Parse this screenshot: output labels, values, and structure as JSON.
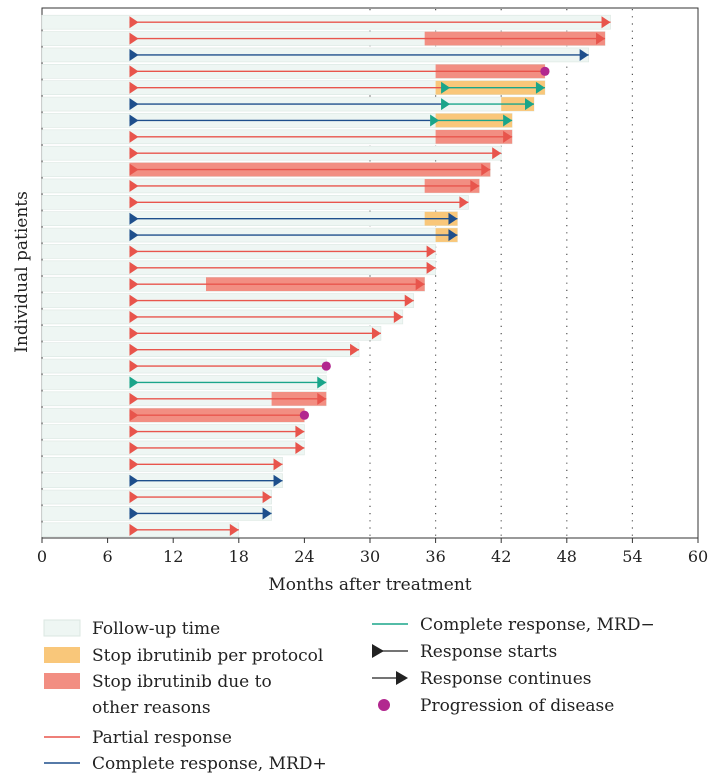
{
  "chart_data": {
    "type": "swimmer",
    "xlabel": "Months after treatment",
    "ylabel": "Individual patients",
    "xlim": [
      0,
      60
    ],
    "xticks": [
      0,
      6,
      12,
      18,
      24,
      30,
      36,
      42,
      48,
      54,
      60
    ],
    "grid": "vertical dotted lines at 30, 36, 42, 48, 54",
    "legend_position": "below plot",
    "colors": {
      "followup": "#eef6f3",
      "followup_edge": "#dbe7e2",
      "stop_protocol": "#f9c77a",
      "stop_other": "#f28e82",
      "partial": "#e8554c",
      "cr_mrd_pos": "#1e4f8c",
      "cr_mrd_neg": "#1aa58a",
      "progression": "#b2278f"
    },
    "legend": [
      {
        "key": "followup",
        "label": "Follow-up time"
      },
      {
        "key": "stop_protocol",
        "label": "Stop ibrutinib per protocol"
      },
      {
        "key": "stop_other",
        "label": "Stop ibrutinib due to",
        "label2": "other reasons"
      },
      {
        "key": "partial",
        "label": "Partial response"
      },
      {
        "key": "cr_mrd_pos",
        "label": "Complete response, MRD+"
      },
      {
        "key": "cr_mrd_neg",
        "label": "Complete response, MRD−"
      },
      {
        "key": "start",
        "label": "Response starts"
      },
      {
        "key": "cont",
        "label": "Response continues"
      },
      {
        "key": "pd",
        "label": "Progression of disease"
      }
    ],
    "patients": [
      {
        "followup": 52,
        "segments": [
          {
            "s": 8,
            "e": 52,
            "t": "partial"
          }
        ],
        "stops": [],
        "pd": null
      },
      {
        "followup": 51.5,
        "segments": [
          {
            "s": 8,
            "e": 51.5,
            "t": "partial"
          }
        ],
        "stops": [
          {
            "s": 35,
            "e": 51.5,
            "t": "other"
          }
        ],
        "pd": null
      },
      {
        "followup": 50,
        "segments": [
          {
            "s": 8,
            "e": 50,
            "t": "cr_pos"
          }
        ],
        "stops": [],
        "pd": null
      },
      {
        "followup": 46,
        "segments": [
          {
            "s": 8,
            "e": 46,
            "t": "partial"
          }
        ],
        "stops": [
          {
            "s": 36,
            "e": 46,
            "t": "other"
          }
        ],
        "pd": 46
      },
      {
        "followup": 46,
        "segments": [
          {
            "s": 8,
            "e": 36.5,
            "t": "partial"
          },
          {
            "s": 36.5,
            "e": 46,
            "t": "cr_neg"
          }
        ],
        "stops": [
          {
            "s": 36,
            "e": 46,
            "t": "protocol"
          }
        ],
        "pd": null
      },
      {
        "followup": 45,
        "segments": [
          {
            "s": 8,
            "e": 36.5,
            "t": "cr_pos"
          },
          {
            "s": 36.5,
            "e": 45,
            "t": "cr_neg"
          }
        ],
        "stops": [
          {
            "s": 42,
            "e": 45,
            "t": "protocol"
          }
        ],
        "pd": null
      },
      {
        "followup": 43,
        "segments": [
          {
            "s": 8,
            "e": 35.5,
            "t": "cr_pos"
          },
          {
            "s": 35.5,
            "e": 43,
            "t": "cr_neg"
          }
        ],
        "stops": [
          {
            "s": 36,
            "e": 43,
            "t": "protocol"
          }
        ],
        "pd": null
      },
      {
        "followup": 43,
        "segments": [
          {
            "s": 8,
            "e": 43,
            "t": "partial"
          }
        ],
        "stops": [
          {
            "s": 36,
            "e": 43,
            "t": "other"
          }
        ],
        "pd": null
      },
      {
        "followup": 42,
        "segments": [
          {
            "s": 8,
            "e": 42,
            "t": "partial"
          }
        ],
        "stops": [],
        "pd": null
      },
      {
        "followup": 41,
        "segments": [
          {
            "s": 8,
            "e": 41,
            "t": "partial"
          }
        ],
        "stops": [
          {
            "s": 8,
            "e": 41,
            "t": "other"
          }
        ],
        "pd": null
      },
      {
        "followup": 40,
        "segments": [
          {
            "s": 8,
            "e": 40,
            "t": "partial"
          }
        ],
        "stops": [
          {
            "s": 35,
            "e": 40,
            "t": "other"
          }
        ],
        "pd": null
      },
      {
        "followup": 39,
        "segments": [
          {
            "s": 8,
            "e": 39,
            "t": "partial"
          }
        ],
        "stops": [],
        "pd": null
      },
      {
        "followup": 38,
        "segments": [
          {
            "s": 8,
            "e": 38,
            "t": "cr_pos"
          }
        ],
        "stops": [
          {
            "s": 35,
            "e": 38,
            "t": "protocol"
          }
        ],
        "pd": null
      },
      {
        "followup": 38,
        "segments": [
          {
            "s": 8,
            "e": 38,
            "t": "cr_pos"
          }
        ],
        "stops": [
          {
            "s": 36,
            "e": 38,
            "t": "protocol"
          }
        ],
        "pd": null
      },
      {
        "followup": 36,
        "segments": [
          {
            "s": 8,
            "e": 36,
            "t": "partial"
          }
        ],
        "stops": [],
        "pd": null
      },
      {
        "followup": 36,
        "segments": [
          {
            "s": 8,
            "e": 36,
            "t": "partial"
          }
        ],
        "stops": [],
        "pd": null
      },
      {
        "followup": 35,
        "segments": [
          {
            "s": 8,
            "e": 35,
            "t": "partial"
          }
        ],
        "stops": [
          {
            "s": 15,
            "e": 35,
            "t": "other"
          }
        ],
        "pd": null
      },
      {
        "followup": 34,
        "segments": [
          {
            "s": 8,
            "e": 34,
            "t": "partial"
          }
        ],
        "stops": [],
        "pd": null
      },
      {
        "followup": 33,
        "segments": [
          {
            "s": 8,
            "e": 33,
            "t": "partial"
          }
        ],
        "stops": [],
        "pd": null
      },
      {
        "followup": 31,
        "segments": [
          {
            "s": 8,
            "e": 31,
            "t": "partial"
          }
        ],
        "stops": [],
        "pd": null
      },
      {
        "followup": 29,
        "segments": [
          {
            "s": 8,
            "e": 29,
            "t": "partial"
          }
        ],
        "stops": [],
        "pd": null
      },
      {
        "followup": 26,
        "segments": [
          {
            "s": 8,
            "e": 26,
            "t": "partial"
          }
        ],
        "stops": [],
        "pd": 26
      },
      {
        "followup": 26,
        "segments": [
          {
            "s": 8,
            "e": 26,
            "t": "cr_neg"
          }
        ],
        "stops": [],
        "pd": null
      },
      {
        "followup": 26,
        "segments": [
          {
            "s": 8,
            "e": 26,
            "t": "partial"
          }
        ],
        "stops": [
          {
            "s": 21,
            "e": 26,
            "t": "other"
          }
        ],
        "pd": null
      },
      {
        "followup": 24,
        "segments": [
          {
            "s": 8,
            "e": 24,
            "t": "partial"
          }
        ],
        "stops": [
          {
            "s": 8,
            "e": 24,
            "t": "other"
          }
        ],
        "pd": 24
      },
      {
        "followup": 24,
        "segments": [
          {
            "s": 8,
            "e": 24,
            "t": "partial"
          }
        ],
        "stops": [],
        "pd": null
      },
      {
        "followup": 24,
        "segments": [
          {
            "s": 8,
            "e": 24,
            "t": "partial"
          }
        ],
        "stops": [],
        "pd": null
      },
      {
        "followup": 22,
        "segments": [
          {
            "s": 8,
            "e": 22,
            "t": "partial"
          }
        ],
        "stops": [],
        "pd": null
      },
      {
        "followup": 22,
        "segments": [
          {
            "s": 8,
            "e": 22,
            "t": "cr_pos"
          }
        ],
        "stops": [],
        "pd": null
      },
      {
        "followup": 21,
        "segments": [
          {
            "s": 8,
            "e": 21,
            "t": "partial"
          }
        ],
        "stops": [],
        "pd": null
      },
      {
        "followup": 21,
        "segments": [
          {
            "s": 8,
            "e": 21,
            "t": "cr_pos"
          }
        ],
        "stops": [],
        "pd": null
      },
      {
        "followup": 18,
        "segments": [
          {
            "s": 8,
            "e": 18,
            "t": "partial"
          }
        ],
        "stops": [],
        "pd": null
      }
    ]
  }
}
